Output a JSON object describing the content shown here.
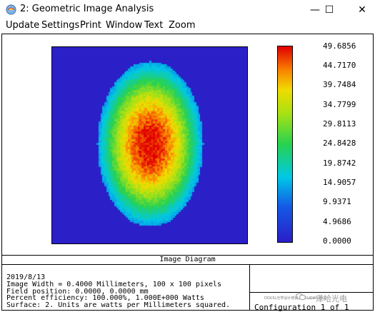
{
  "window": {
    "title": "2: Geometric Image Analysis",
    "minimize_glyph": "—",
    "maximize_glyph": "☐",
    "close_glyph": "✕"
  },
  "menu": {
    "items": [
      "Update",
      "Settings",
      "Print",
      "Window",
      "Text",
      "Zoom"
    ]
  },
  "colorbar": {
    "ticks": [
      "49.6856",
      "44.7170",
      "39.7484",
      "34.7799",
      "29.8113",
      "24.8428",
      "19.8742",
      "14.9057",
      "9.9371",
      "4.9686",
      "0.0000"
    ],
    "min": 0.0,
    "max": 49.6856
  },
  "diagram": {
    "caption": "Image Diagram",
    "grid_pixels": "100 x 100",
    "spot_shape": "ellipse",
    "background_color": "#2b1fc8"
  },
  "info": {
    "date": "2019/8/13",
    "image_width": "Image Width = 0.4000 Millimeters, 100 x 100 pixels",
    "field_position": "Field position: 0.0000, 0.0000 mm",
    "efficiency": "Percent efficiency: 100.000%, 1.000E+000 Watts",
    "surface": "Surface: 2. Units are watts per Millimeters squared.",
    "configuration": "Configuration 1 of 1"
  },
  "watermark": {
    "small_text": "DOUSL光学设计培训 - SOLIDWORKS",
    "brand_text": "一泽哈光电"
  }
}
